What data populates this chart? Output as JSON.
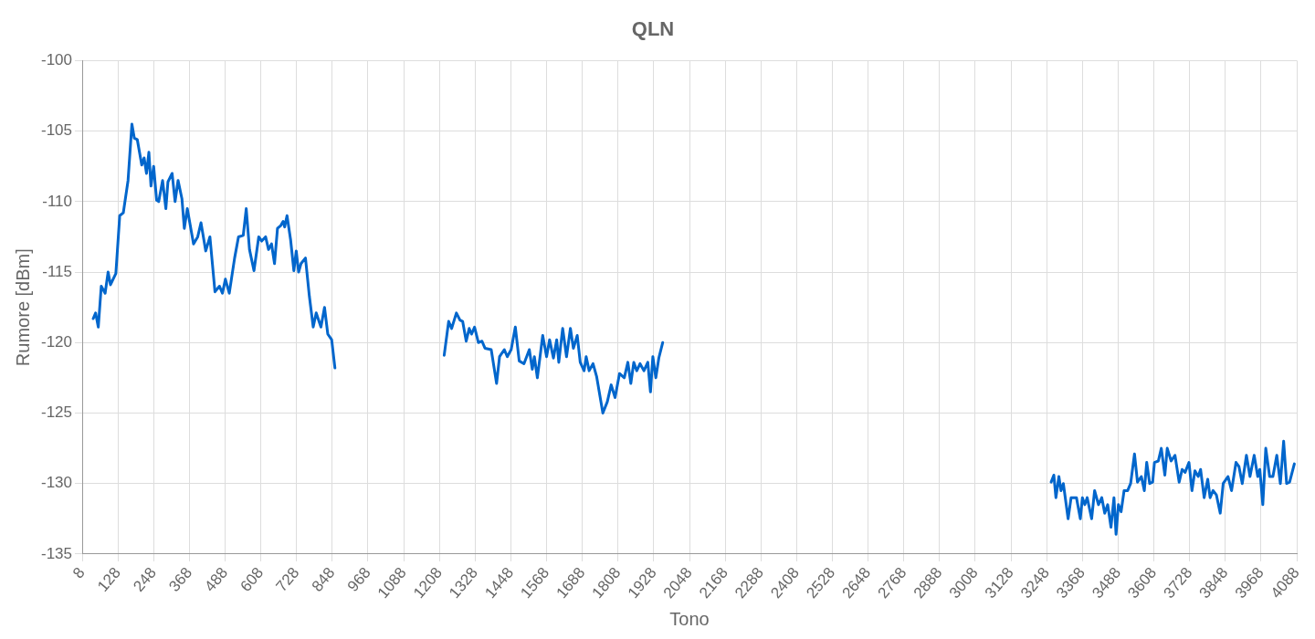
{
  "chart_data": {
    "type": "line",
    "title": "QLN",
    "xlabel": "Tono",
    "ylabel": "Rumore [dBm]",
    "grid": true,
    "legend": false,
    "marker": "none",
    "line_style": "solid",
    "xlim": [
      8,
      4088
    ],
    "xticks": [
      8,
      128,
      248,
      368,
      488,
      608,
      728,
      848,
      968,
      1088,
      1208,
      1328,
      1448,
      1568,
      1688,
      1808,
      1928,
      2048,
      2168,
      2288,
      2408,
      2528,
      2648,
      2768,
      2888,
      3008,
      3128,
      3248,
      3368,
      3488,
      3608,
      3728,
      3848,
      3968,
      4088
    ],
    "ylim": [
      -135,
      -100
    ],
    "yticks": [
      -135,
      -130,
      -125,
      -120,
      -115,
      -110,
      -105,
      -100
    ],
    "series": [
      {
        "color": "#0066cc",
        "x": [
          45,
          53,
          62,
          72,
          85,
          95,
          103,
          121,
          134,
          146,
          162,
          175,
          183,
          193,
          208,
          216,
          224,
          232,
          239,
          248,
          258,
          265,
          278,
          289,
          296,
          310,
          320,
          330,
          343,
          351,
          361,
          382,
          396,
          407,
          423,
          437,
          454,
          469,
          479,
          489,
          502,
          520,
          533,
          549,
          559,
          570,
          585,
          601,
          611,
          624,
          634,
          644,
          654,
          664,
          675,
          683,
          688,
          696,
          708,
          719,
          727,
          735,
          743,
          758,
          771,
          784,
          794,
          810,
          822,
          833,
          846,
          857,
          1000,
          1224,
          1239,
          1249,
          1265,
          1277,
          1286,
          1298,
          1308,
          1316,
          1326,
          1339,
          1351,
          1361,
          1382,
          1400,
          1410,
          1426,
          1436,
          1449,
          1463,
          1476,
          1492,
          1510,
          1520,
          1527,
          1537,
          1555,
          1568,
          1578,
          1591,
          1602,
          1609,
          1622,
          1635,
          1648,
          1658,
          1671,
          1681,
          1694,
          1701,
          1711,
          1724,
          1736,
          1757,
          1772,
          1785,
          1798,
          1813,
          1829,
          1841,
          1851,
          1861,
          1871,
          1882,
          1895,
          1908,
          1917,
          1925,
          1935,
          1945,
          1958,
          2500,
          3263,
          3272,
          3279,
          3289,
          3296,
          3304,
          3320,
          3330,
          3348,
          3361,
          3368,
          3376,
          3384,
          3399,
          3409,
          3422,
          3433,
          3443,
          3453,
          3464,
          3474,
          3481,
          3489,
          3498,
          3508,
          3520,
          3530,
          3543,
          3553,
          3566,
          3576,
          3584,
          3594,
          3604,
          3610,
          3623,
          3633,
          3645,
          3653,
          3666,
          3679,
          3693,
          3703,
          3713,
          3726,
          3736,
          3746,
          3757,
          3765,
          3777,
          3789,
          3797,
          3807,
          3818,
          3831,
          3841,
          3857,
          3869,
          3884,
          3894,
          3905,
          3919,
          3931,
          3945,
          3957,
          3964,
          3974,
          3984,
          3997,
          4008,
          4021,
          4033,
          4044,
          4054,
          4064,
          4080
        ],
        "values": [
          -118.3,
          -117.9,
          -118.9,
          -116.0,
          -116.5,
          -115.0,
          -115.9,
          -115.1,
          -111.0,
          -110.8,
          -108.5,
          -104.5,
          -105.5,
          -105.6,
          -107.4,
          -106.9,
          -108.0,
          -106.5,
          -108.9,
          -107.5,
          -109.9,
          -110.0,
          -108.5,
          -110.5,
          -108.6,
          -108.0,
          -110.0,
          -108.5,
          -109.8,
          -111.9,
          -110.5,
          -113.0,
          -112.5,
          -111.5,
          -113.5,
          -112.5,
          -116.4,
          -116.0,
          -116.5,
          -115.5,
          -116.5,
          -114.0,
          -112.5,
          -112.4,
          -110.5,
          -113.4,
          -114.9,
          -112.5,
          -112.8,
          -112.5,
          -113.4,
          -113.0,
          -114.4,
          -111.9,
          -111.7,
          -111.4,
          -111.8,
          -111.0,
          -112.7,
          -114.9,
          -113.5,
          -115.0,
          -114.4,
          -114.0,
          -116.7,
          -118.9,
          -117.9,
          -118.9,
          -117.5,
          -119.4,
          -119.8,
          -121.8,
          null,
          -120.9,
          -118.5,
          -119.0,
          -117.9,
          -118.4,
          -118.5,
          -119.9,
          -119.0,
          -119.4,
          -118.9,
          -120.0,
          -119.9,
          -120.4,
          -120.5,
          -122.9,
          -121.0,
          -120.5,
          -121.0,
          -120.5,
          -118.9,
          -121.3,
          -121.5,
          -120.5,
          -121.9,
          -121.0,
          -122.5,
          -119.5,
          -121.0,
          -119.8,
          -121.1,
          -119.8,
          -121.4,
          -119.0,
          -121.0,
          -119.0,
          -120.4,
          -119.5,
          -121.4,
          -122.0,
          -121.0,
          -122.0,
          -121.5,
          -122.4,
          -125.0,
          -124.2,
          -123.0,
          -123.9,
          -122.2,
          -122.5,
          -121.4,
          -122.9,
          -121.4,
          -122.0,
          -121.5,
          -122.0,
          -121.4,
          -123.5,
          -121.0,
          -122.5,
          -121.1,
          -120.0,
          null,
          -129.9,
          -129.4,
          -131.0,
          -129.5,
          -130.5,
          -130.0,
          -132.5,
          -131.0,
          -131.0,
          -132.5,
          -131.0,
          -131.5,
          -131.0,
          -132.5,
          -130.5,
          -131.5,
          -131.0,
          -132.1,
          -131.5,
          -133.1,
          -131.0,
          -133.6,
          -131.5,
          -132.0,
          -130.5,
          -130.5,
          -130.0,
          -127.9,
          -129.9,
          -129.5,
          -130.5,
          -128.5,
          -130.0,
          -129.9,
          -128.5,
          -128.4,
          -127.5,
          -129.4,
          -127.5,
          -128.4,
          -128.0,
          -129.9,
          -129.0,
          -129.2,
          -128.5,
          -130.5,
          -129.1,
          -129.5,
          -129.0,
          -131.0,
          -129.7,
          -131.0,
          -130.5,
          -130.8,
          -132.1,
          -130.0,
          -129.5,
          -130.5,
          -128.5,
          -128.8,
          -130.0,
          -128.0,
          -129.5,
          -128.0,
          -129.5,
          -129.0,
          -131.5,
          -127.5,
          -129.5,
          -129.5,
          -128.0,
          -130.0,
          -127.0,
          -130.0,
          -129.9,
          -128.6
        ]
      }
    ]
  }
}
